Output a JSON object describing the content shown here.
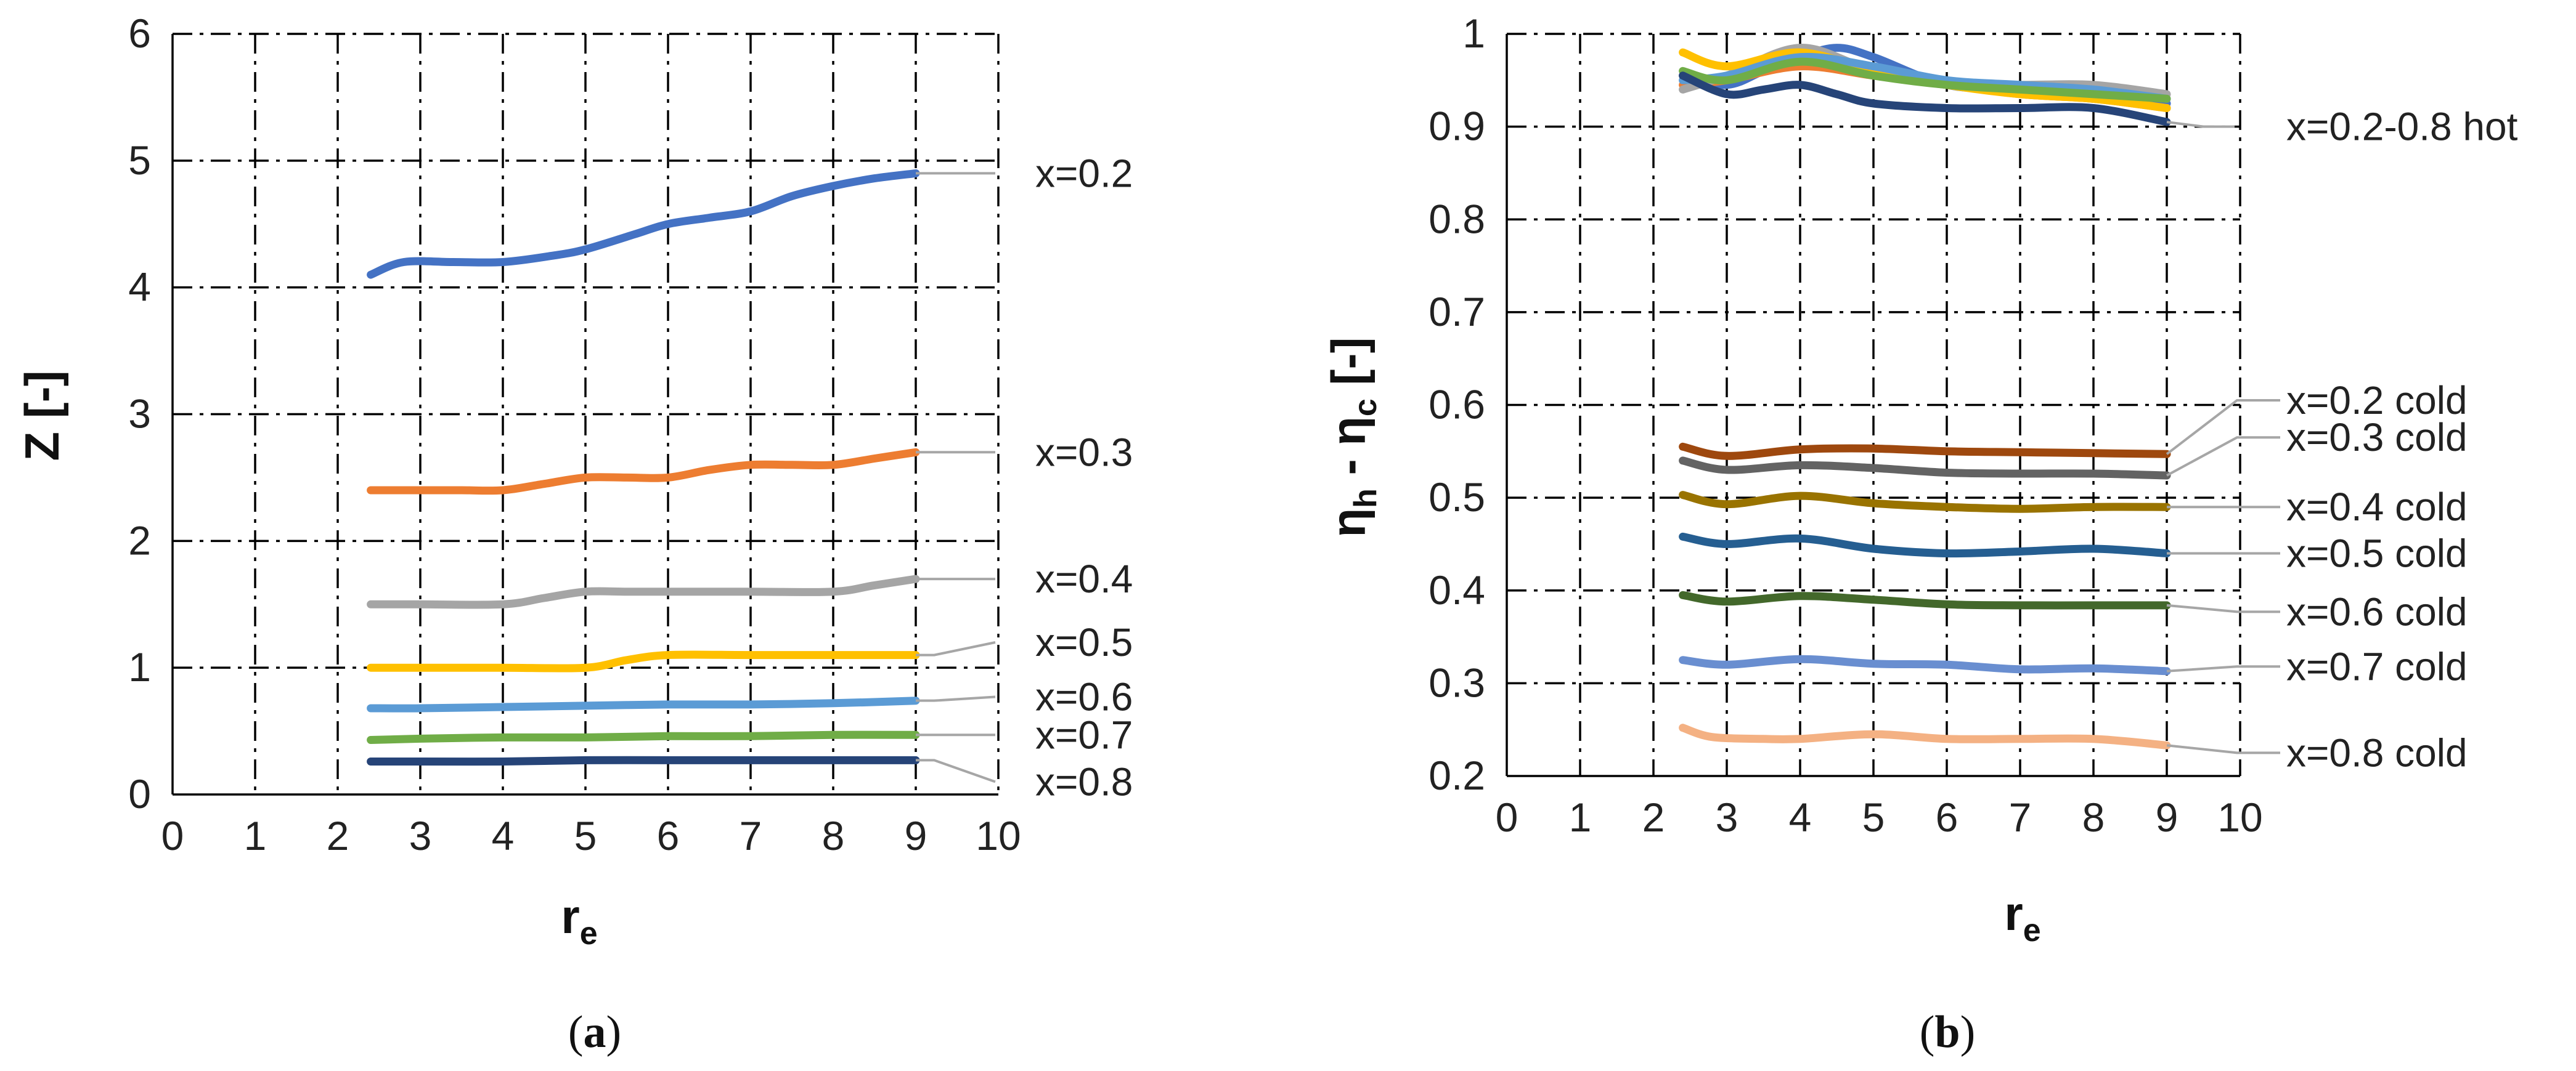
{
  "chart_data": [
    {
      "type": "line",
      "panel": "a",
      "caption_letter": "a",
      "xlabel_main": "r",
      "xlabel_sub": "e",
      "ylabel": "Z [-]",
      "xlim": [
        0,
        10
      ],
      "ylim": [
        0,
        6
      ],
      "xticks": [
        "0",
        "1",
        "2",
        "3",
        "4",
        "5",
        "6",
        "7",
        "8",
        "9",
        "10"
      ],
      "yticks": [
        "0",
        "1",
        "2",
        "3",
        "4",
        "5",
        "6"
      ],
      "grid": true,
      "series": [
        {
          "name": "x=0.2",
          "color": "#4472c4",
          "label_value": 4.9,
          "x": [
            2.4,
            2.8,
            3.4,
            4.0,
            4.6,
            5.0,
            5.6,
            6.0,
            6.5,
            7.0,
            7.5,
            8.0,
            8.5,
            9.0
          ],
          "y": [
            4.1,
            4.2,
            4.2,
            4.2,
            4.25,
            4.3,
            4.42,
            4.5,
            4.55,
            4.6,
            4.72,
            4.8,
            4.86,
            4.9
          ]
        },
        {
          "name": "x=0.3",
          "color": "#ed7d31",
          "label_value": 2.7,
          "x": [
            2.4,
            3.0,
            3.5,
            4.0,
            4.5,
            5.0,
            5.5,
            6.0,
            6.5,
            7.0,
            7.5,
            8.0,
            8.5,
            9.0
          ],
          "y": [
            2.4,
            2.4,
            2.4,
            2.4,
            2.45,
            2.5,
            2.5,
            2.5,
            2.56,
            2.6,
            2.6,
            2.6,
            2.65,
            2.7
          ]
        },
        {
          "name": "x=0.4",
          "color": "#a5a5a5",
          "label_value": 1.7,
          "x": [
            2.4,
            3.0,
            4.0,
            4.5,
            5.0,
            5.5,
            6.0,
            7.0,
            8.0,
            8.5,
            9.0
          ],
          "y": [
            1.5,
            1.5,
            1.5,
            1.55,
            1.6,
            1.6,
            1.6,
            1.6,
            1.6,
            1.65,
            1.7
          ]
        },
        {
          "name": "x=0.5",
          "color": "#ffc000",
          "label_value": 1.2,
          "x": [
            2.4,
            3.0,
            4.0,
            5.0,
            5.5,
            6.0,
            7.0,
            8.0,
            9.0
          ],
          "y": [
            1.0,
            1.0,
            1.0,
            1.0,
            1.06,
            1.1,
            1.1,
            1.1,
            1.1
          ]
        },
        {
          "name": "x=0.6",
          "color": "#5b9bd5",
          "label_value": 0.77,
          "x": [
            2.4,
            3.0,
            4.0,
            5.0,
            6.0,
            7.0,
            8.0,
            9.0
          ],
          "y": [
            0.68,
            0.68,
            0.69,
            0.7,
            0.71,
            0.71,
            0.72,
            0.74
          ]
        },
        {
          "name": "x=0.7",
          "color": "#70ad47",
          "label_value": 0.47,
          "x": [
            2.4,
            3.0,
            4.0,
            5.0,
            6.0,
            7.0,
            8.0,
            9.0
          ],
          "y": [
            0.43,
            0.44,
            0.45,
            0.45,
            0.46,
            0.46,
            0.47,
            0.47
          ]
        },
        {
          "name": "x=0.8",
          "color": "#264478",
          "label_value": 0.1,
          "x": [
            2.4,
            3.0,
            4.0,
            5.0,
            6.0,
            7.0,
            8.0,
            9.0
          ],
          "y": [
            0.26,
            0.26,
            0.26,
            0.27,
            0.27,
            0.27,
            0.27,
            0.27
          ]
        }
      ]
    },
    {
      "type": "line",
      "panel": "b",
      "caption_letter": "b",
      "xlabel_main": "r",
      "xlabel_sub": "e",
      "ylabel_parts": {
        "eta1": "η",
        "sub1": "h",
        "mid": " - ",
        "eta2": "η",
        "sub2": "c",
        "unit": " [-]"
      },
      "xlim": [
        0,
        10
      ],
      "ylim": [
        0.2,
        1.0
      ],
      "xticks": [
        "0",
        "1",
        "2",
        "3",
        "4",
        "5",
        "6",
        "7",
        "8",
        "9",
        "10"
      ],
      "yticks": [
        "0.2",
        "0.3",
        "0.4",
        "0.5",
        "0.6",
        "0.7",
        "0.8",
        "0.9",
        "1"
      ],
      "grid": true,
      "hot_label": "x=0.2-0.8 hot",
      "hot_label_value": 0.9,
      "series": [
        {
          "name": "x=0.2 hot",
          "color": "#4472c4",
          "group": "hot",
          "x": [
            2.4,
            3.0,
            3.5,
            4.0,
            4.5,
            5.0,
            6.0,
            7.0,
            8.0,
            9.0
          ],
          "y": [
            0.955,
            0.945,
            0.96,
            0.975,
            0.985,
            0.975,
            0.945,
            0.94,
            0.93,
            0.925
          ]
        },
        {
          "name": "x=0.3 hot",
          "color": "#ed7d31",
          "group": "hot",
          "x": [
            2.4,
            3.0,
            4.0,
            5.0,
            6.0,
            7.0,
            8.0,
            9.0
          ],
          "y": [
            0.945,
            0.95,
            0.965,
            0.955,
            0.945,
            0.935,
            0.93,
            0.92
          ]
        },
        {
          "name": "x=0.4 hot",
          "color": "#a5a5a5",
          "group": "hot",
          "x": [
            2.4,
            3.0,
            4.0,
            5.0,
            6.0,
            7.0,
            8.0,
            9.0
          ],
          "y": [
            0.94,
            0.955,
            0.985,
            0.96,
            0.945,
            0.945,
            0.945,
            0.935
          ]
        },
        {
          "name": "x=0.5 hot",
          "color": "#ffc000",
          "group": "hot",
          "x": [
            2.4,
            3.0,
            4.0,
            5.0,
            6.0,
            7.0,
            8.0,
            9.0
          ],
          "y": [
            0.98,
            0.965,
            0.98,
            0.96,
            0.945,
            0.935,
            0.93,
            0.92
          ]
        },
        {
          "name": "x=0.6 hot",
          "color": "#5b9bd5",
          "group": "hot",
          "x": [
            2.4,
            3.0,
            4.0,
            5.0,
            6.0,
            7.0,
            8.0,
            9.0
          ],
          "y": [
            0.95,
            0.955,
            0.975,
            0.965,
            0.95,
            0.945,
            0.94,
            0.93
          ]
        },
        {
          "name": "x=0.7 hot",
          "color": "#70ad47",
          "group": "hot",
          "x": [
            2.4,
            3.0,
            4.0,
            5.0,
            6.0,
            7.0,
            8.0,
            9.0
          ],
          "y": [
            0.96,
            0.95,
            0.97,
            0.955,
            0.945,
            0.94,
            0.935,
            0.93
          ]
        },
        {
          "name": "x=0.8 hot",
          "color": "#264478",
          "group": "hot",
          "x": [
            2.4,
            3.0,
            3.5,
            4.0,
            4.5,
            5.0,
            6.0,
            7.0,
            8.0,
            9.0
          ],
          "y": [
            0.955,
            0.935,
            0.94,
            0.945,
            0.935,
            0.925,
            0.92,
            0.92,
            0.92,
            0.905
          ]
        },
        {
          "name": "x=0.2 cold",
          "color": "#9e480e",
          "group": "cold",
          "label_value": 0.605,
          "x": [
            2.4,
            3.0,
            4.0,
            5.0,
            6.0,
            7.0,
            8.0,
            9.0
          ],
          "y": [
            0.555,
            0.545,
            0.552,
            0.553,
            0.55,
            0.549,
            0.548,
            0.547
          ]
        },
        {
          "name": "x=0.3 cold",
          "color": "#636363",
          "group": "cold",
          "label_value": 0.565,
          "x": [
            2.4,
            3.0,
            4.0,
            5.0,
            6.0,
            7.0,
            8.0,
            9.0
          ],
          "y": [
            0.54,
            0.53,
            0.535,
            0.532,
            0.527,
            0.526,
            0.526,
            0.524
          ]
        },
        {
          "name": "x=0.4 cold",
          "color": "#997300",
          "group": "cold",
          "label_value": 0.49,
          "x": [
            2.4,
            3.0,
            4.0,
            5.0,
            6.0,
            7.0,
            8.0,
            9.0
          ],
          "y": [
            0.503,
            0.493,
            0.502,
            0.494,
            0.49,
            0.488,
            0.49,
            0.49
          ]
        },
        {
          "name": "x=0.5 cold",
          "color": "#255e91",
          "group": "cold",
          "label_value": 0.44,
          "x": [
            2.4,
            3.0,
            4.0,
            5.0,
            6.0,
            7.0,
            8.0,
            9.0
          ],
          "y": [
            0.458,
            0.45,
            0.456,
            0.445,
            0.44,
            0.442,
            0.445,
            0.44
          ]
        },
        {
          "name": "x=0.6 cold",
          "color": "#43682b",
          "group": "cold",
          "label_value": 0.377,
          "x": [
            2.4,
            3.0,
            4.0,
            5.0,
            6.0,
            7.0,
            8.0,
            9.0
          ],
          "y": [
            0.395,
            0.388,
            0.394,
            0.39,
            0.385,
            0.384,
            0.384,
            0.384
          ]
        },
        {
          "name": "x=0.7 cold",
          "color": "#698ed0",
          "group": "cold",
          "label_value": 0.318,
          "x": [
            2.4,
            3.0,
            4.0,
            5.0,
            6.0,
            7.0,
            8.0,
            9.0
          ],
          "y": [
            0.325,
            0.32,
            0.326,
            0.321,
            0.32,
            0.315,
            0.316,
            0.313
          ]
        },
        {
          "name": "x=0.8 cold",
          "color": "#f4b183",
          "group": "cold",
          "label_value": 0.225,
          "x": [
            2.4,
            2.8,
            3.5,
            4.0,
            5.0,
            6.0,
            7.0,
            8.0,
            9.0
          ],
          "y": [
            0.252,
            0.242,
            0.24,
            0.24,
            0.245,
            0.24,
            0.24,
            0.24,
            0.233
          ]
        }
      ]
    }
  ]
}
